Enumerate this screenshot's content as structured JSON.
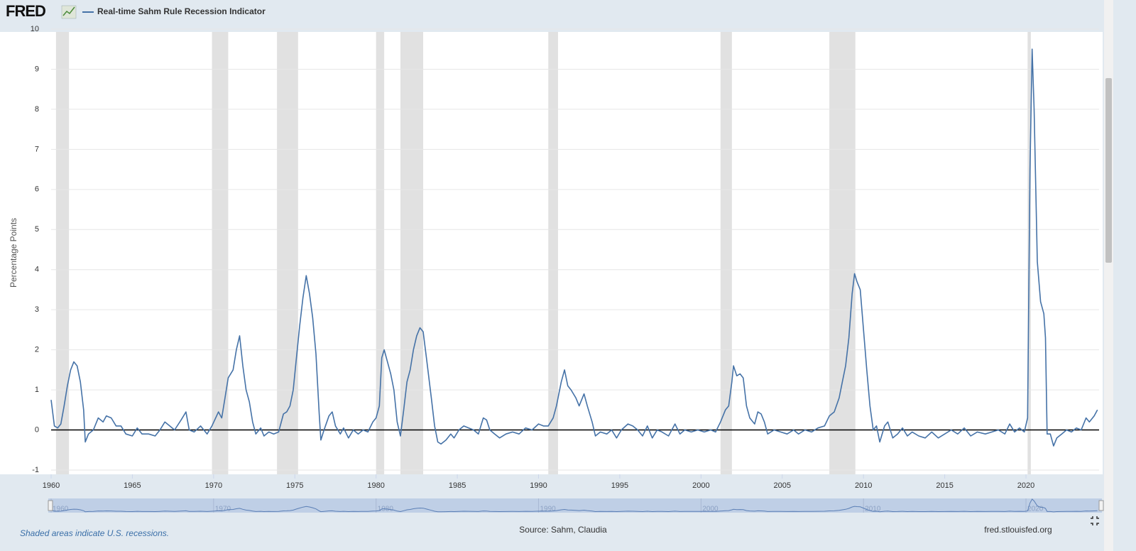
{
  "chart_data": {
    "type": "line",
    "brand": "FRED",
    "legend_label": "Real-time Sahm Rule Recession Indicator",
    "y_label": "Percentage Points",
    "footnote": "Shaded areas indicate U.S. recessions.",
    "source": "Source: Sahm, Claudia",
    "site": "fred.stlouisfed.org",
    "xlim": [
      1960,
      2024.5
    ],
    "xticks": [
      1960,
      1965,
      1970,
      1975,
      1980,
      1985,
      1990,
      1995,
      2000,
      2005,
      2010,
      2015,
      2020
    ],
    "navigator_ticks": [
      1960,
      1970,
      1980,
      1990,
      2000,
      2010,
      2020
    ],
    "ylim": [
      -1,
      10
    ],
    "yticks": [
      -1,
      0,
      1,
      2,
      3,
      4,
      5,
      6,
      7,
      8,
      9,
      10
    ],
    "grid": true,
    "recessions": [
      [
        1960.3,
        1961.1
      ],
      [
        1969.9,
        1970.9
      ],
      [
        1973.9,
        1975.2
      ],
      [
        1980.0,
        1980.5
      ],
      [
        1981.5,
        1982.9
      ],
      [
        1990.6,
        1991.2
      ],
      [
        2001.2,
        2001.9
      ],
      [
        2007.9,
        2009.5
      ],
      [
        2020.1,
        2020.3
      ]
    ],
    "x": [
      1960.0,
      1960.2,
      1960.4,
      1960.6,
      1960.8,
      1961.0,
      1961.2,
      1961.4,
      1961.6,
      1961.8,
      1962.0,
      1962.1,
      1962.3,
      1962.6,
      1962.9,
      1963.2,
      1963.4,
      1963.7,
      1964.0,
      1964.3,
      1964.6,
      1965.0,
      1965.3,
      1965.6,
      1966.0,
      1966.4,
      1966.7,
      1967.0,
      1967.3,
      1967.6,
      1968.0,
      1968.3,
      1968.5,
      1968.8,
      1969.2,
      1969.6,
      1969.9,
      1970.3,
      1970.5,
      1970.7,
      1970.9,
      1971.2,
      1971.4,
      1971.6,
      1971.8,
      1972.0,
      1972.2,
      1972.4,
      1972.6,
      1972.9,
      1973.1,
      1973.4,
      1973.7,
      1974.0,
      1974.3,
      1974.5,
      1974.7,
      1974.9,
      1975.1,
      1975.3,
      1975.5,
      1975.7,
      1975.9,
      1976.1,
      1976.3,
      1976.5,
      1976.6,
      1976.8,
      1977.1,
      1977.3,
      1977.5,
      1977.8,
      1978.0,
      1978.3,
      1978.6,
      1978.9,
      1979.2,
      1979.5,
      1979.8,
      1980.0,
      1980.2,
      1980.35,
      1980.5,
      1980.7,
      1980.9,
      1981.1,
      1981.3,
      1981.5,
      1981.7,
      1981.9,
      1982.1,
      1982.3,
      1982.5,
      1982.7,
      1982.9,
      1983.1,
      1983.4,
      1983.6,
      1983.8,
      1984.0,
      1984.3,
      1984.6,
      1984.8,
      1985.1,
      1985.4,
      1985.7,
      1986.0,
      1986.3,
      1986.6,
      1986.8,
      1987.0,
      1987.3,
      1987.6,
      1988.0,
      1988.4,
      1988.8,
      1989.2,
      1989.6,
      1990.0,
      1990.3,
      1990.6,
      1990.9,
      1991.1,
      1991.4,
      1991.6,
      1991.8,
      1992.0,
      1992.3,
      1992.5,
      1992.8,
      1993.0,
      1993.3,
      1993.5,
      1993.8,
      1994.2,
      1994.5,
      1994.8,
      1995.1,
      1995.5,
      1995.8,
      1996.1,
      1996.4,
      1996.7,
      1997.0,
      1997.3,
      1997.6,
      1998.0,
      1998.4,
      1998.7,
      1999.0,
      1999.4,
      1999.8,
      2000.2,
      2000.6,
      2000.9,
      2001.2,
      2001.5,
      2001.7,
      2001.9,
      2002.0,
      2002.2,
      2002.4,
      2002.6,
      2002.8,
      2003.0,
      2003.3,
      2003.5,
      2003.7,
      2003.9,
      2004.1,
      2004.5,
      2004.9,
      2005.3,
      2005.7,
      2006.0,
      2006.4,
      2006.8,
      2007.2,
      2007.6,
      2007.9,
      2008.2,
      2008.5,
      2008.7,
      2008.9,
      2009.1,
      2009.3,
      2009.45,
      2009.6,
      2009.8,
      2010.0,
      2010.2,
      2010.4,
      2010.6,
      2010.8,
      2011.0,
      2011.3,
      2011.5,
      2011.8,
      2012.1,
      2012.4,
      2012.7,
      2013.0,
      2013.4,
      2013.8,
      2014.2,
      2014.6,
      2015.0,
      2015.4,
      2015.8,
      2016.2,
      2016.6,
      2017.0,
      2017.5,
      2017.9,
      2018.3,
      2018.7,
      2019.0,
      2019.3,
      2019.6,
      2019.9,
      2020.1,
      2020.25,
      2020.38,
      2020.5,
      2020.7,
      2020.9,
      2021.1,
      2021.2,
      2021.3,
      2021.5,
      2021.7,
      2021.9,
      2022.2,
      2022.5,
      2022.8,
      2023.1,
      2023.4,
      2023.7,
      2023.9,
      2024.2,
      2024.4
    ],
    "series": [
      {
        "name": "Real-time Sahm Rule Recession Indicator",
        "color": "#4572a7",
        "values": [
          0.75,
          0.1,
          0.05,
          0.15,
          0.6,
          1.1,
          1.5,
          1.7,
          1.6,
          1.2,
          0.5,
          -0.3,
          -0.1,
          0.0,
          0.3,
          0.2,
          0.35,
          0.3,
          0.1,
          0.1,
          -0.1,
          -0.15,
          0.05,
          -0.1,
          -0.1,
          -0.15,
          0.0,
          0.2,
          0.1,
          0.0,
          0.25,
          0.45,
          0.0,
          -0.05,
          0.1,
          -0.1,
          0.1,
          0.45,
          0.3,
          0.8,
          1.3,
          1.5,
          2.0,
          2.35,
          1.6,
          1.0,
          0.7,
          0.2,
          -0.1,
          0.05,
          -0.15,
          -0.05,
          -0.1,
          -0.05,
          0.4,
          0.45,
          0.6,
          1.0,
          1.8,
          2.6,
          3.3,
          3.85,
          3.4,
          2.8,
          1.9,
          0.4,
          -0.25,
          0.0,
          0.35,
          0.45,
          0.1,
          -0.1,
          0.05,
          -0.2,
          0.0,
          -0.1,
          0.0,
          -0.05,
          0.2,
          0.3,
          0.6,
          1.8,
          2.0,
          1.7,
          1.4,
          1.0,
          0.2,
          -0.15,
          0.5,
          1.2,
          1.5,
          2.0,
          2.35,
          2.55,
          2.45,
          1.8,
          0.8,
          0.1,
          -0.3,
          -0.35,
          -0.25,
          -0.1,
          -0.2,
          0.0,
          0.1,
          0.05,
          0.0,
          -0.1,
          0.3,
          0.25,
          0.0,
          -0.1,
          -0.2,
          -0.1,
          -0.05,
          -0.1,
          0.05,
          0.0,
          0.15,
          0.1,
          0.1,
          0.3,
          0.6,
          1.2,
          1.5,
          1.1,
          1.0,
          0.8,
          0.6,
          0.9,
          0.6,
          0.2,
          -0.15,
          -0.05,
          -0.1,
          0.0,
          -0.2,
          0.0,
          0.15,
          0.1,
          0.0,
          -0.15,
          0.1,
          -0.2,
          0.0,
          -0.05,
          -0.15,
          0.15,
          -0.1,
          0.0,
          -0.05,
          0.0,
          -0.05,
          0.0,
          -0.05,
          0.2,
          0.5,
          0.6,
          1.2,
          1.6,
          1.35,
          1.4,
          1.3,
          0.6,
          0.3,
          0.15,
          0.45,
          0.4,
          0.2,
          -0.1,
          0.0,
          -0.05,
          -0.1,
          0.0,
          -0.1,
          0.0,
          -0.05,
          0.05,
          0.1,
          0.35,
          0.45,
          0.8,
          1.2,
          1.6,
          2.3,
          3.4,
          3.9,
          3.7,
          3.5,
          2.5,
          1.5,
          0.6,
          0.0,
          0.1,
          -0.3,
          0.1,
          0.2,
          -0.2,
          -0.1,
          0.05,
          -0.15,
          -0.05,
          -0.15,
          -0.2,
          -0.05,
          -0.2,
          -0.1,
          0.0,
          -0.1,
          0.05,
          -0.15,
          -0.05,
          -0.1,
          -0.05,
          0.0,
          -0.1,
          0.15,
          -0.05,
          0.05,
          -0.05,
          0.3,
          6.5,
          9.5,
          8.0,
          4.2,
          3.2,
          2.9,
          2.3,
          -0.1,
          -0.1,
          -0.4,
          -0.2,
          -0.1,
          0.0,
          -0.05,
          0.05,
          0.0,
          0.3,
          0.2,
          0.35,
          0.5
        ]
      }
    ]
  }
}
